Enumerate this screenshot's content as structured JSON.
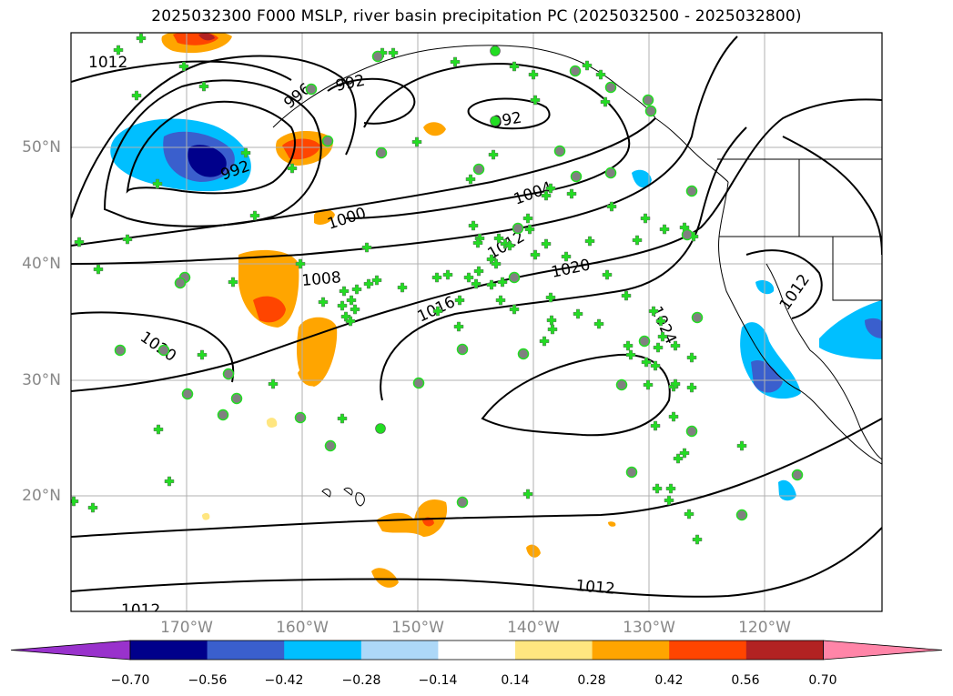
{
  "title": "2025032300 F000 MSLP, river basin precipitation PC (2025032500 - 2025032800)",
  "map": {
    "lat_labels": [
      "50°N",
      "40°N",
      "30°N",
      "20°N"
    ],
    "lon_labels": [
      "170°W",
      "160°W",
      "150°W",
      "140°W",
      "130°W",
      "120°W"
    ],
    "isobar_labels": [
      "1012",
      "992",
      "992",
      "992",
      "996",
      "1004",
      "1000",
      "1012",
      "1020",
      "1008",
      "1016",
      "1024",
      "1012",
      "1020",
      "1012",
      "1012"
    ],
    "shading_colors": {
      "neg_070": "#9932cc",
      "neg_056": "#00008b",
      "neg_042": "#3a5fcd",
      "neg_028": "#00bfff",
      "neg_014": "#add8f8",
      "zero": "#ffffff",
      "pos_014": "#ffe680",
      "pos_028": "#ffa500",
      "pos_042": "#ff4500",
      "pos_056": "#b22222",
      "pos_070": "#ff85a8"
    },
    "station_marker_colors": {
      "cross": "#22dd22",
      "circle_fill": "#808080",
      "circle_ring": "#22dd22",
      "dot": "#22dd22"
    }
  },
  "colorbar": {
    "ticks": [
      "−0.70",
      "−0.56",
      "−0.42",
      "−0.28",
      "−0.14",
      "0.14",
      "0.28",
      "0.42",
      "0.56",
      "0.70"
    ],
    "colors": [
      "#9932cc",
      "#00008b",
      "#3a5fcd",
      "#00bfff",
      "#add8f8",
      "#ffffff",
      "#ffe680",
      "#ffa500",
      "#ff4500",
      "#b22222",
      "#ff85a8"
    ]
  }
}
